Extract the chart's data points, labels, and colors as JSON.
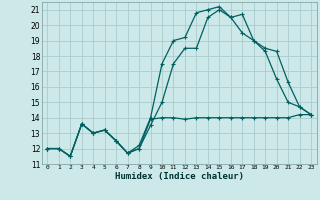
{
  "xlabel": "Humidex (Indice chaleur)",
  "bg_color": "#cce8e8",
  "grid_color": "#aacccc",
  "line_color": "#006060",
  "xlim": [
    -0.5,
    23.5
  ],
  "ylim": [
    11,
    21.5
  ],
  "xtick_labels": [
    "0",
    "1",
    "2",
    "3",
    "4",
    "5",
    "6",
    "7",
    "8",
    "9",
    "10",
    "11",
    "12",
    "13",
    "14",
    "15",
    "16",
    "17",
    "18",
    "19",
    "20",
    "21",
    "22",
    "23"
  ],
  "xtick_vals": [
    0,
    1,
    2,
    3,
    4,
    5,
    6,
    7,
    8,
    9,
    10,
    11,
    12,
    13,
    14,
    15,
    16,
    17,
    18,
    19,
    20,
    21,
    22,
    23
  ],
  "ytick_vals": [
    11,
    12,
    13,
    14,
    15,
    16,
    17,
    18,
    19,
    20,
    21
  ],
  "line1_x": [
    0,
    1,
    2,
    3,
    4,
    5,
    6,
    7,
    8,
    9,
    10,
    11,
    12,
    13,
    14,
    15,
    16,
    17,
    18,
    19,
    20,
    21,
    22,
    23
  ],
  "line1_y": [
    12.0,
    12.0,
    11.5,
    13.6,
    13.0,
    13.2,
    12.5,
    11.7,
    12.0,
    13.9,
    14.0,
    14.0,
    13.9,
    14.0,
    14.0,
    14.0,
    14.0,
    14.0,
    14.0,
    14.0,
    14.0,
    14.0,
    14.2,
    14.2
  ],
  "line2_x": [
    0,
    1,
    2,
    3,
    4,
    5,
    6,
    7,
    8,
    9,
    10,
    11,
    12,
    13,
    14,
    15,
    16,
    17,
    18,
    19,
    20,
    21,
    22,
    23
  ],
  "line2_y": [
    12.0,
    12.0,
    11.5,
    13.6,
    13.0,
    13.2,
    12.5,
    11.7,
    12.2,
    14.0,
    17.5,
    19.0,
    19.2,
    20.8,
    21.0,
    21.2,
    20.5,
    20.7,
    19.0,
    18.3,
    16.5,
    15.0,
    14.7,
    14.2
  ],
  "line3_x": [
    0,
    1,
    2,
    3,
    4,
    5,
    6,
    7,
    8,
    9,
    10,
    11,
    12,
    13,
    14,
    15,
    16,
    17,
    18,
    19,
    20,
    21,
    22,
    23
  ],
  "line3_y": [
    12.0,
    12.0,
    11.5,
    13.6,
    13.0,
    13.2,
    12.5,
    11.7,
    12.0,
    13.5,
    15.0,
    17.5,
    18.5,
    18.5,
    20.5,
    21.0,
    20.5,
    19.5,
    19.0,
    18.5,
    18.3,
    16.3,
    14.7,
    14.2
  ]
}
